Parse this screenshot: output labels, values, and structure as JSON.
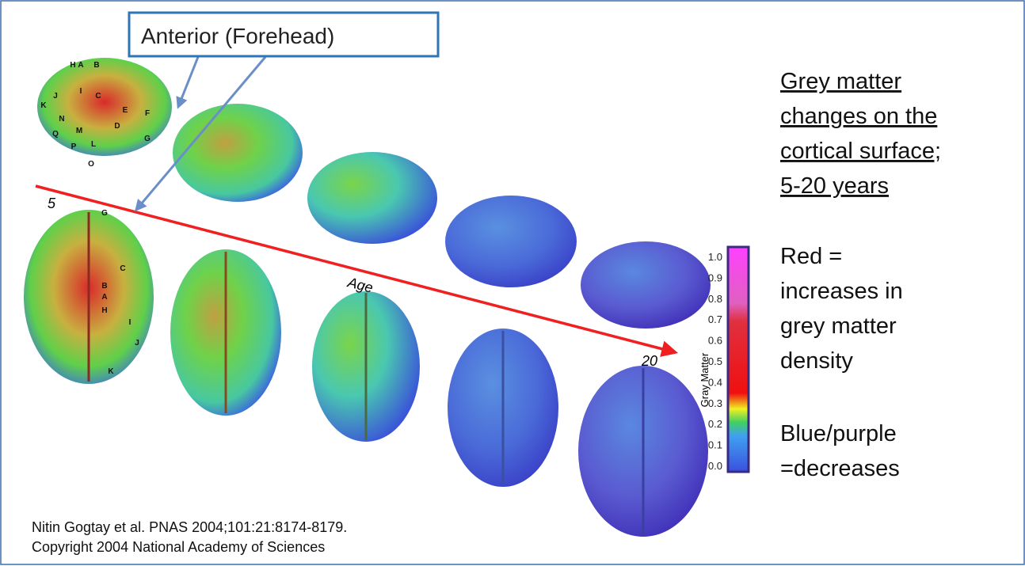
{
  "callout": {
    "label": "Anterior (Forehead)"
  },
  "figure": {
    "start_label": "5",
    "end_label": "20",
    "axis_label": "Age",
    "colorbar": {
      "title": "Gray Matter",
      "ticks": [
        "1.0",
        "0.9",
        "0.8",
        "0.7",
        "0.6",
        "0.5",
        "0.4",
        "0.3",
        "0.2",
        "0.1",
        "0.0"
      ]
    },
    "lateral_regions": [
      "H",
      "A",
      "B",
      "I",
      "C",
      "E",
      "F",
      "J",
      "K",
      "N",
      "D",
      "Q",
      "M",
      "G",
      "P",
      "L",
      "O"
    ],
    "dorsal_regions": [
      "G",
      "C",
      "B",
      "A",
      "H",
      "I",
      "J",
      "K"
    ]
  },
  "notes": {
    "heading_lines": [
      "Grey matter",
      "changes on the",
      "cortical surface;",
      "5-20 years"
    ],
    "red_lines": [
      "Red =",
      "increases in",
      "grey matter",
      "density"
    ],
    "blue_lines": [
      "Blue/purple",
      "=decreases"
    ]
  },
  "citation": [
    "Nitin Gogtay et al. PNAS 2004;101:21:8174-8179.",
    "Copyright 2004 National Academy of Sciences"
  ]
}
